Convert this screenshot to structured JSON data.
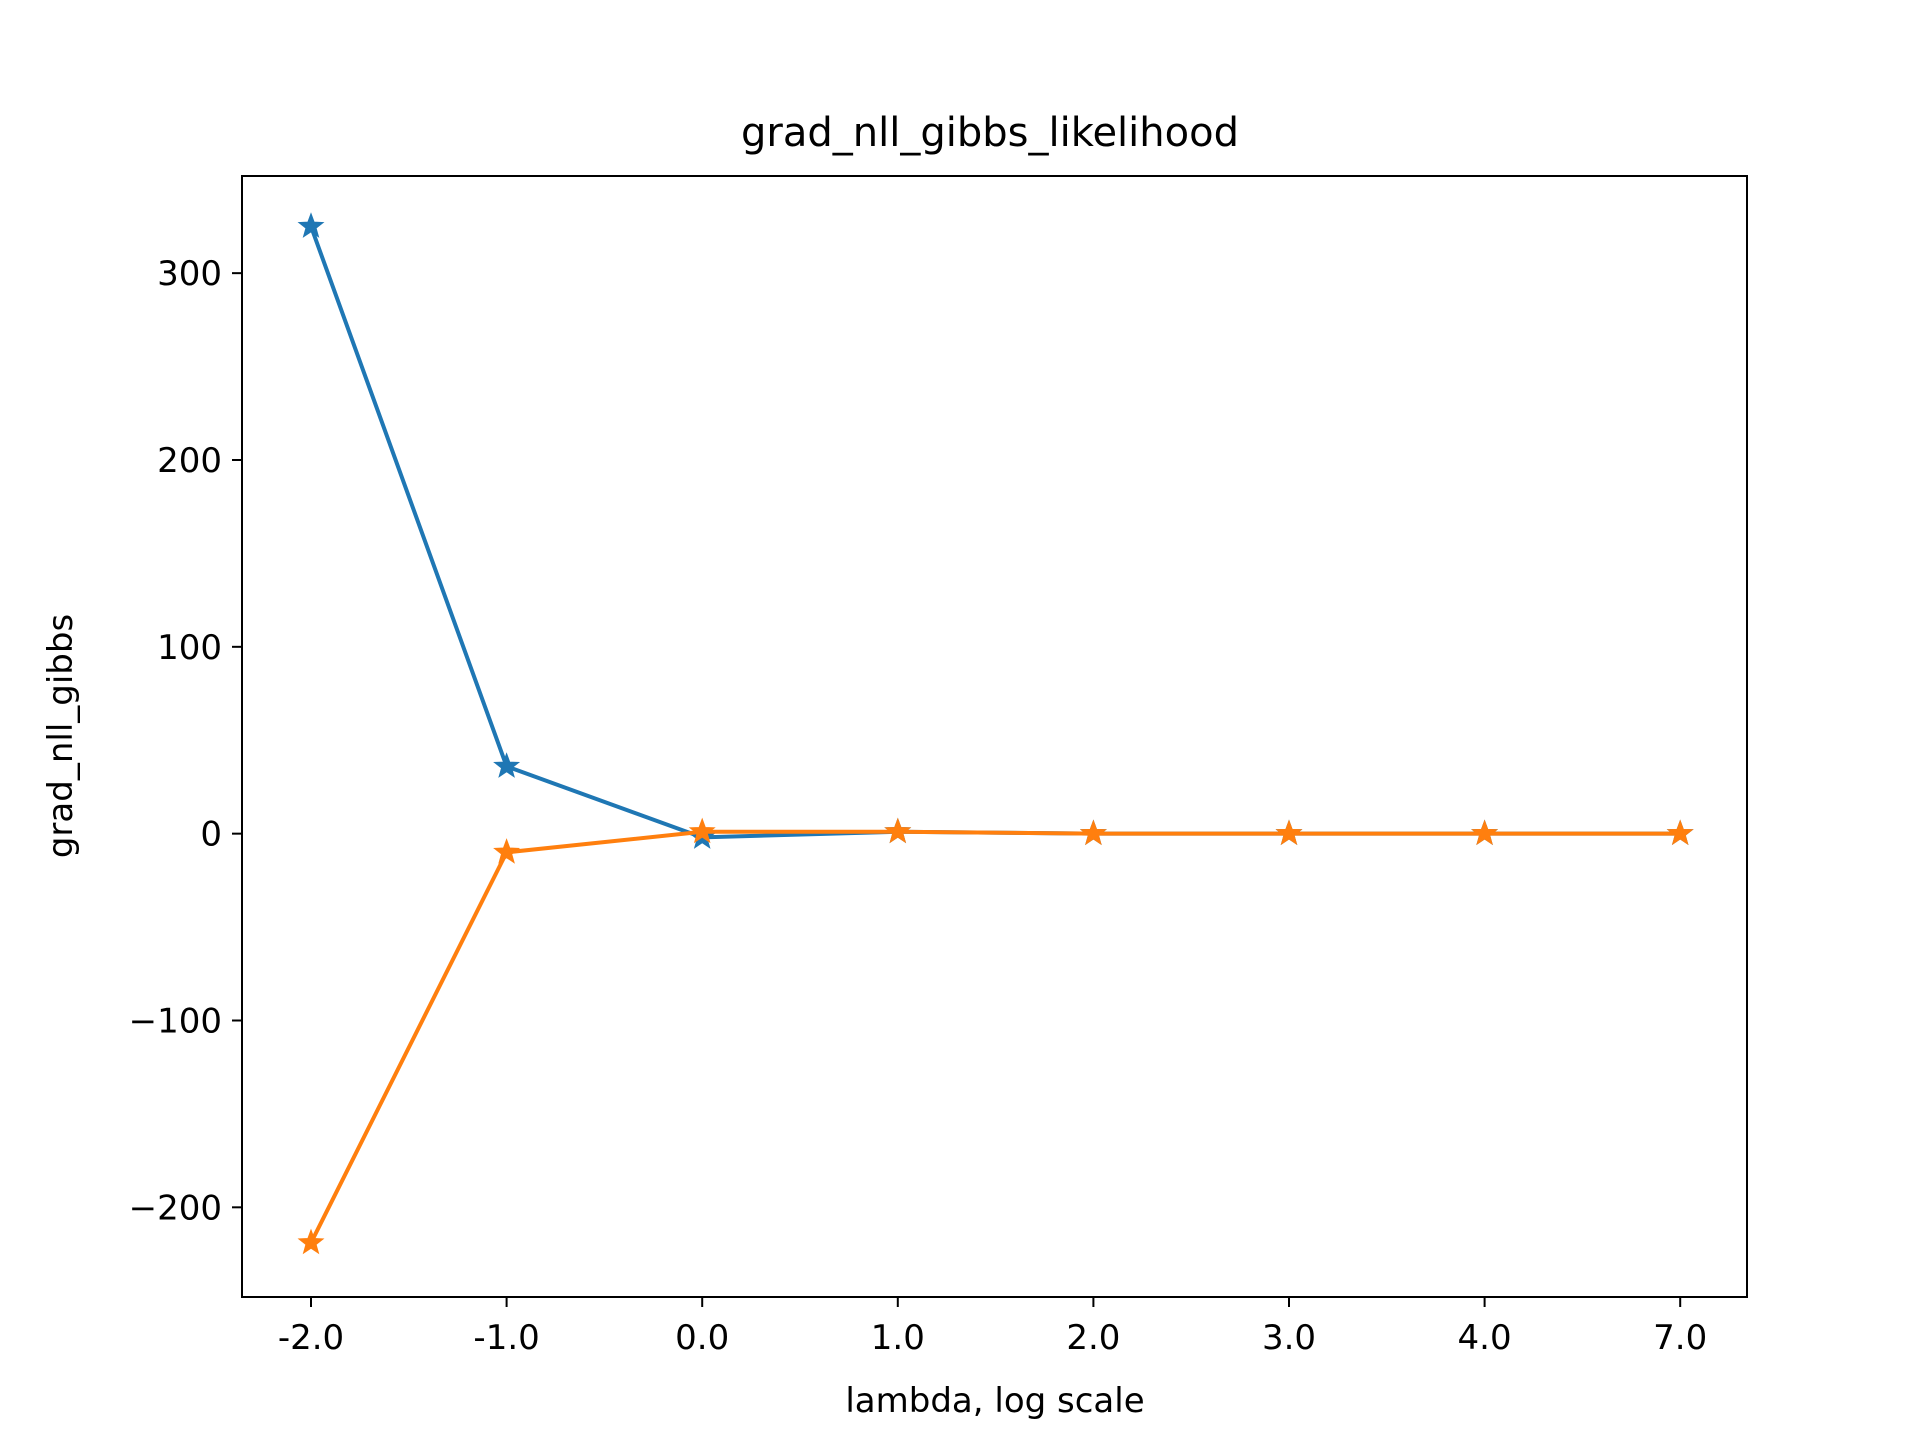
{
  "chart_data": {
    "type": "line",
    "title": "grad_nll_gibbs_likelihood",
    "xlabel": "lambda, log scale",
    "ylabel": "grad_nll_gibbs",
    "categories": [
      "-2.0",
      "-1.0",
      "0.0",
      "1.0",
      "2.0",
      "3.0",
      "4.0",
      "7.0"
    ],
    "ylim": [
      -248,
      352
    ],
    "yticks": [
      -200,
      -100,
      0,
      100,
      200,
      300
    ],
    "ytick_labels": [
      "−200",
      "−100",
      "0",
      "100",
      "200",
      "300"
    ],
    "grid": false,
    "legend": "none",
    "marker": "star",
    "series": [
      {
        "color": "#1f77b4",
        "values": [
          325,
          36,
          -2,
          1,
          0,
          0,
          0,
          0
        ]
      },
      {
        "color": "#ff7f0e",
        "values": [
          -219,
          -10,
          1,
          1,
          0,
          0,
          0,
          0
        ]
      }
    ]
  }
}
